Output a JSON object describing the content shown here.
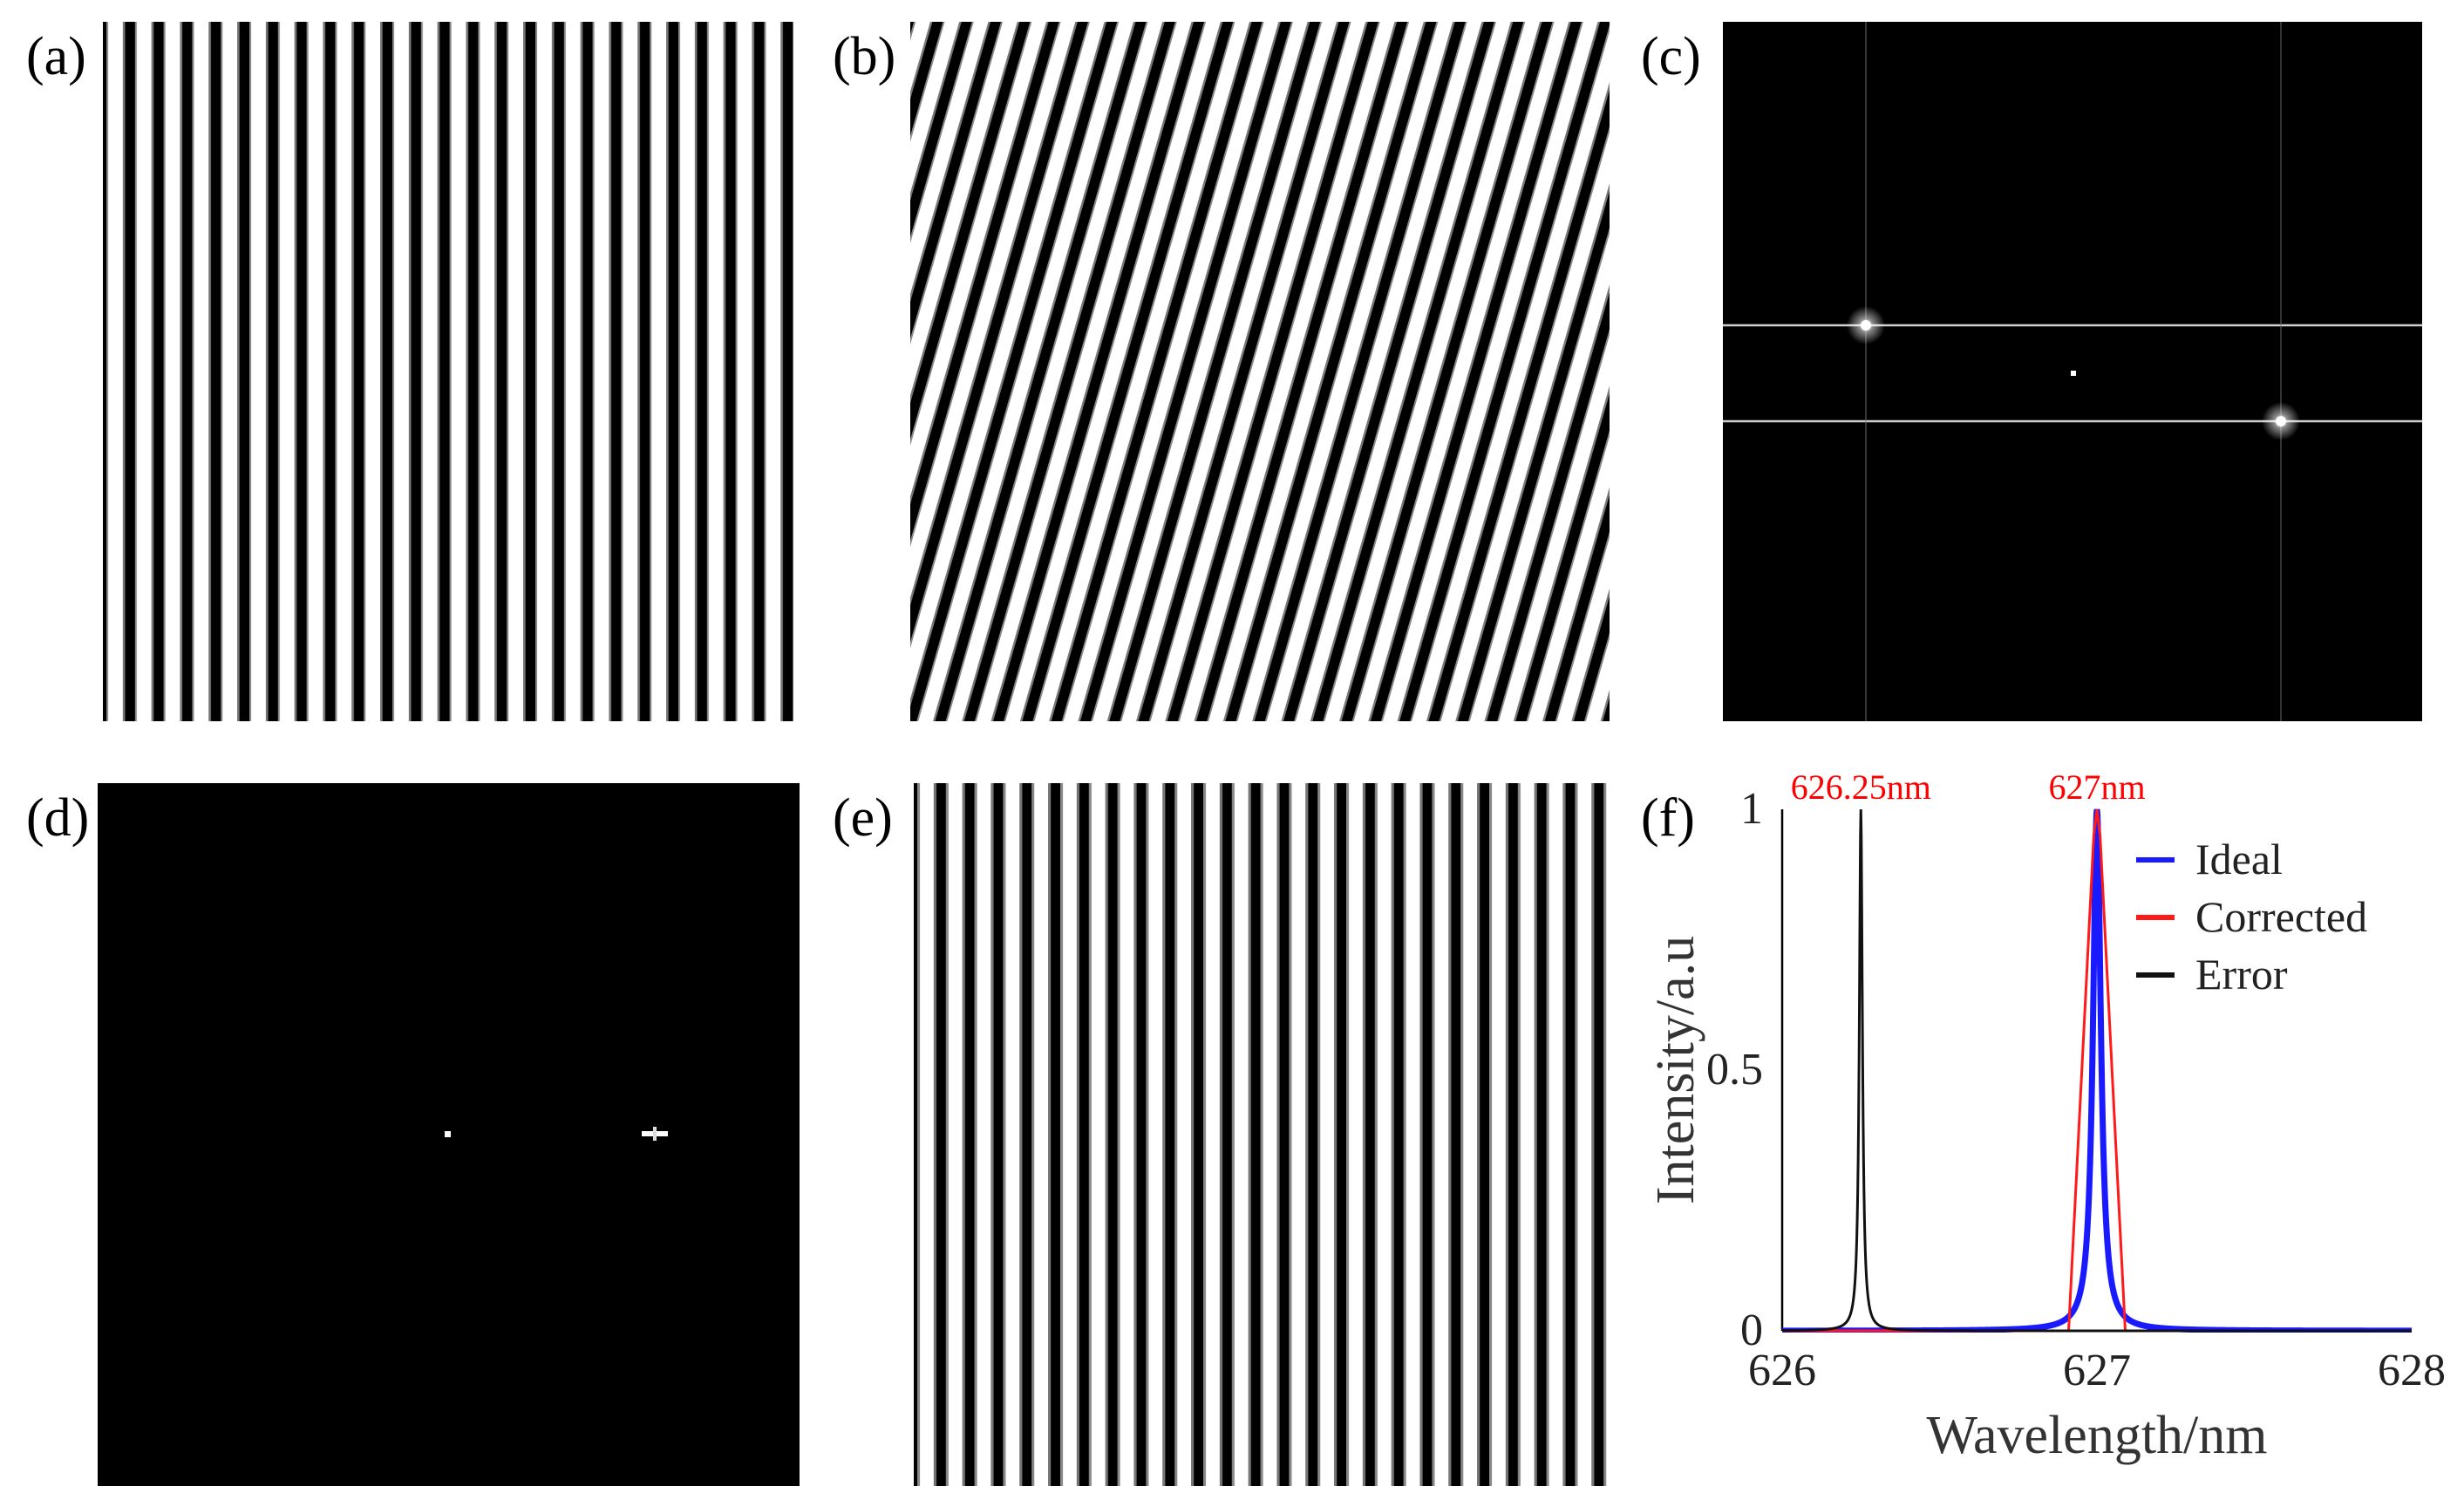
{
  "panels": {
    "a": {
      "label": "(a)"
    },
    "b": {
      "label": "(b)"
    },
    "c": {
      "label": "(c)"
    },
    "d": {
      "label": "(d)"
    },
    "e": {
      "label": "(e)"
    },
    "f": {
      "label": "(f)"
    }
  },
  "colors": {
    "ideal": "#1a1aff",
    "corrected": "#ff1a1a",
    "error": "#111111",
    "annotation": "#ff0000"
  },
  "chart_data": {
    "type": "line",
    "xlabel": "Wavelength/nm",
    "ylabel": "Intensity/a.u",
    "xlim": [
      626,
      628
    ],
    "ylim": [
      0,
      1
    ],
    "xticks": [
      "626",
      "627",
      "628"
    ],
    "yticks": [
      "0",
      "0.5",
      "1"
    ],
    "legend_position": "top-right",
    "annotations": [
      "626.25nm",
      "627nm"
    ],
    "series": [
      {
        "name": "Ideal",
        "type": "lorentzian",
        "center": 627.0,
        "gamma": 0.015
      },
      {
        "name": "Corrected",
        "type": "narrow-peak",
        "center": 627.0,
        "half_base_width": 0.09
      },
      {
        "name": "Error",
        "type": "lorentzian",
        "center": 626.25,
        "gamma": 0.006
      }
    ]
  }
}
